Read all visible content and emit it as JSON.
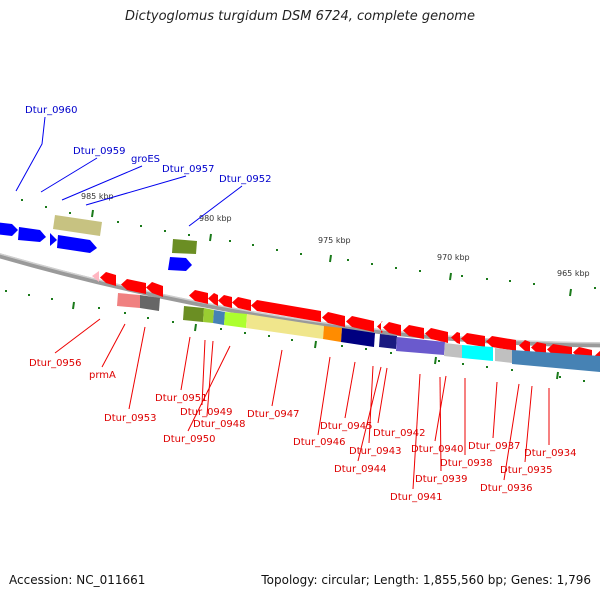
{
  "title": "Dictyoglomus turgidum DSM 6724, complete genome",
  "footer": {
    "accession": "Accession: NC_011661",
    "summary": "Topology: circular; Length: 1,855,560 bp; Genes: 1,796"
  },
  "colors": {
    "forward_strand": "#0000ff",
    "reverse_strand": "#ff0000",
    "backbone": "#888888",
    "tick": "#1a7a1a"
  },
  "scale_ticks": [
    "985 kbp",
    "980 kbp",
    "975 kbp",
    "970 kbp",
    "965 kbp"
  ],
  "forward_labels": [
    "Dtur_0960",
    "Dtur_0959",
    "groES",
    "Dtur_0957",
    "Dtur_0952"
  ],
  "reverse_labels": [
    "Dtur_0956",
    "prmA",
    "Dtur_0953",
    "Dtur_0951",
    "Dtur_0950",
    "Dtur_0949",
    "Dtur_0948",
    "Dtur_0947",
    "Dtur_0946",
    "Dtur_0945",
    "Dtur_0944",
    "Dtur_0943",
    "Dtur_0942",
    "Dtur_0941",
    "Dtur_0940",
    "Dtur_0939",
    "Dtur_0938",
    "Dtur_0937",
    "Dtur_0936",
    "Dtur_0935",
    "Dtur_0934"
  ]
}
